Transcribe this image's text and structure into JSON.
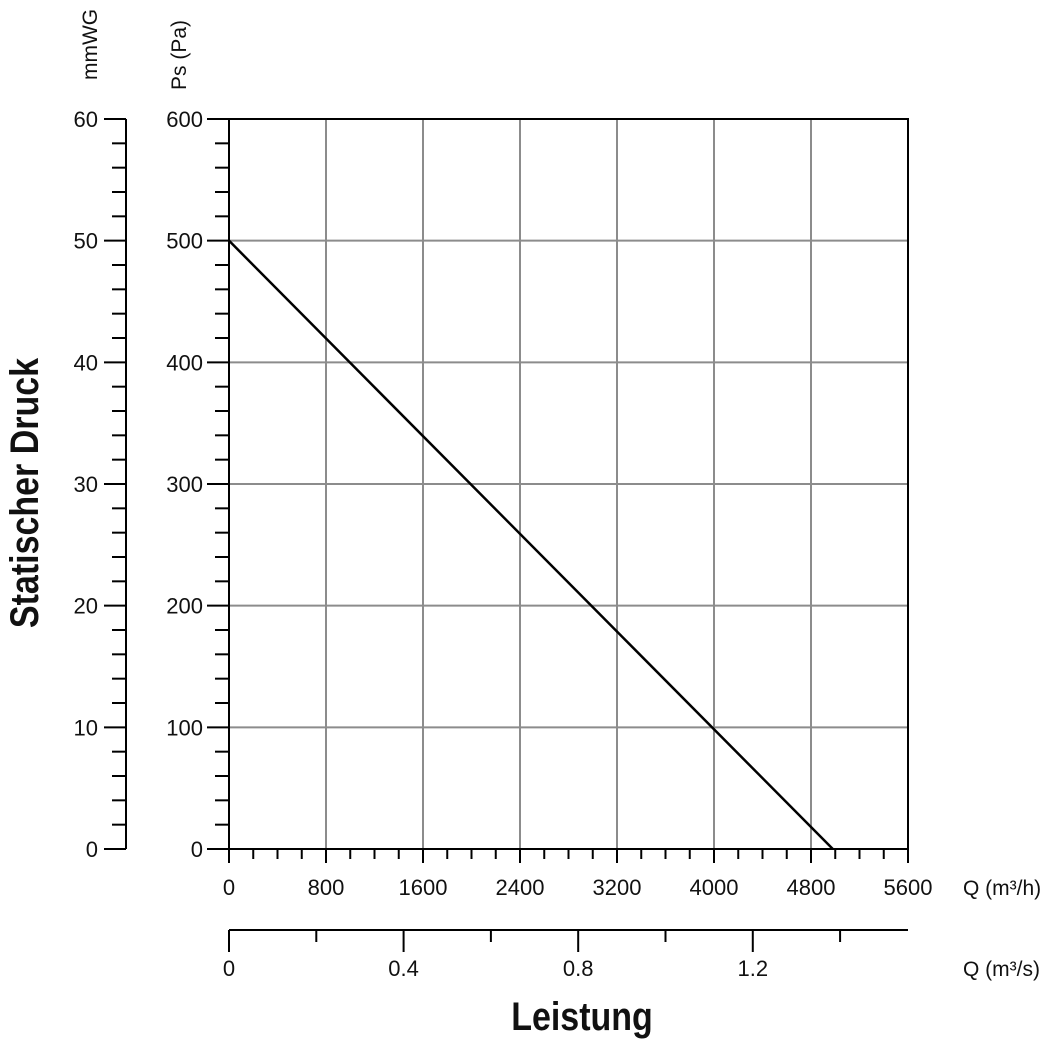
{
  "chart_data": {
    "type": "line",
    "title": "",
    "ylabel": "Statischer Druck",
    "xlabel": "Leistung",
    "y_axis_pa": {
      "unit_label": "Ps (Pa)",
      "ylim": [
        0,
        600
      ],
      "ticks": [
        "0",
        "100",
        "200",
        "300",
        "400",
        "500",
        "600"
      ]
    },
    "y_axis_mmwg": {
      "unit_label": "mmWG",
      "ylim": [
        0,
        60
      ],
      "ticks": [
        "0",
        "10",
        "20",
        "30",
        "40",
        "50",
        "60"
      ]
    },
    "x_axis_m3h": {
      "unit_label": "Q (m³/h)",
      "xlim": [
        0,
        5600
      ],
      "ticks": [
        "0",
        "800",
        "1600",
        "2400",
        "3200",
        "4000",
        "4800",
        "5600"
      ]
    },
    "x_axis_m3s": {
      "unit_label": "Q (m³/s)",
      "xlim": [
        0,
        1.5556
      ],
      "ticks": [
        "0",
        "0.4",
        "0.8",
        "1.2"
      ]
    },
    "grid": true,
    "series": [
      {
        "x": [
          0,
          4980
        ],
        "y": [
          500,
          0
        ]
      }
    ]
  }
}
